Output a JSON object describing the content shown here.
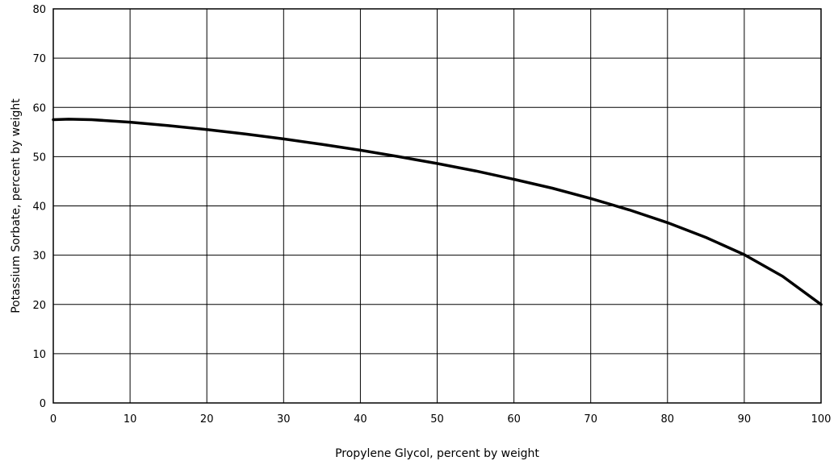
{
  "chart_data": {
    "type": "line",
    "title": "",
    "xlabel": "Propylene Glycol, percent by weight",
    "ylabel": "Potassium Sorbate, percent by weight",
    "xlim": [
      0,
      100
    ],
    "ylim": [
      0,
      80
    ],
    "xticks": [
      0,
      10,
      20,
      30,
      40,
      50,
      60,
      70,
      80,
      90,
      100
    ],
    "yticks": [
      0,
      10,
      20,
      30,
      40,
      50,
      60,
      70,
      80
    ],
    "xtick_labels": [
      "0",
      "10",
      "20",
      "30",
      "40",
      "50",
      "60",
      "70",
      "80",
      "90",
      "100"
    ],
    "ytick_labels": [
      "0",
      "10",
      "20",
      "30",
      "40",
      "50",
      "60",
      "70",
      "80"
    ],
    "grid": true,
    "series": [
      {
        "color": "#000000",
        "x": [
          0,
          2,
          5,
          10,
          15,
          20,
          25,
          30,
          35,
          40,
          45,
          50,
          55,
          60,
          65,
          70,
          75,
          80,
          85,
          90,
          95,
          100
        ],
        "y": [
          57.5,
          57.6,
          57.5,
          57.0,
          56.3,
          55.5,
          54.6,
          53.6,
          52.5,
          51.3,
          50.0,
          48.6,
          47.1,
          45.4,
          43.6,
          41.5,
          39.2,
          36.6,
          33.6,
          30.1,
          25.7,
          20.0
        ]
      }
    ]
  }
}
